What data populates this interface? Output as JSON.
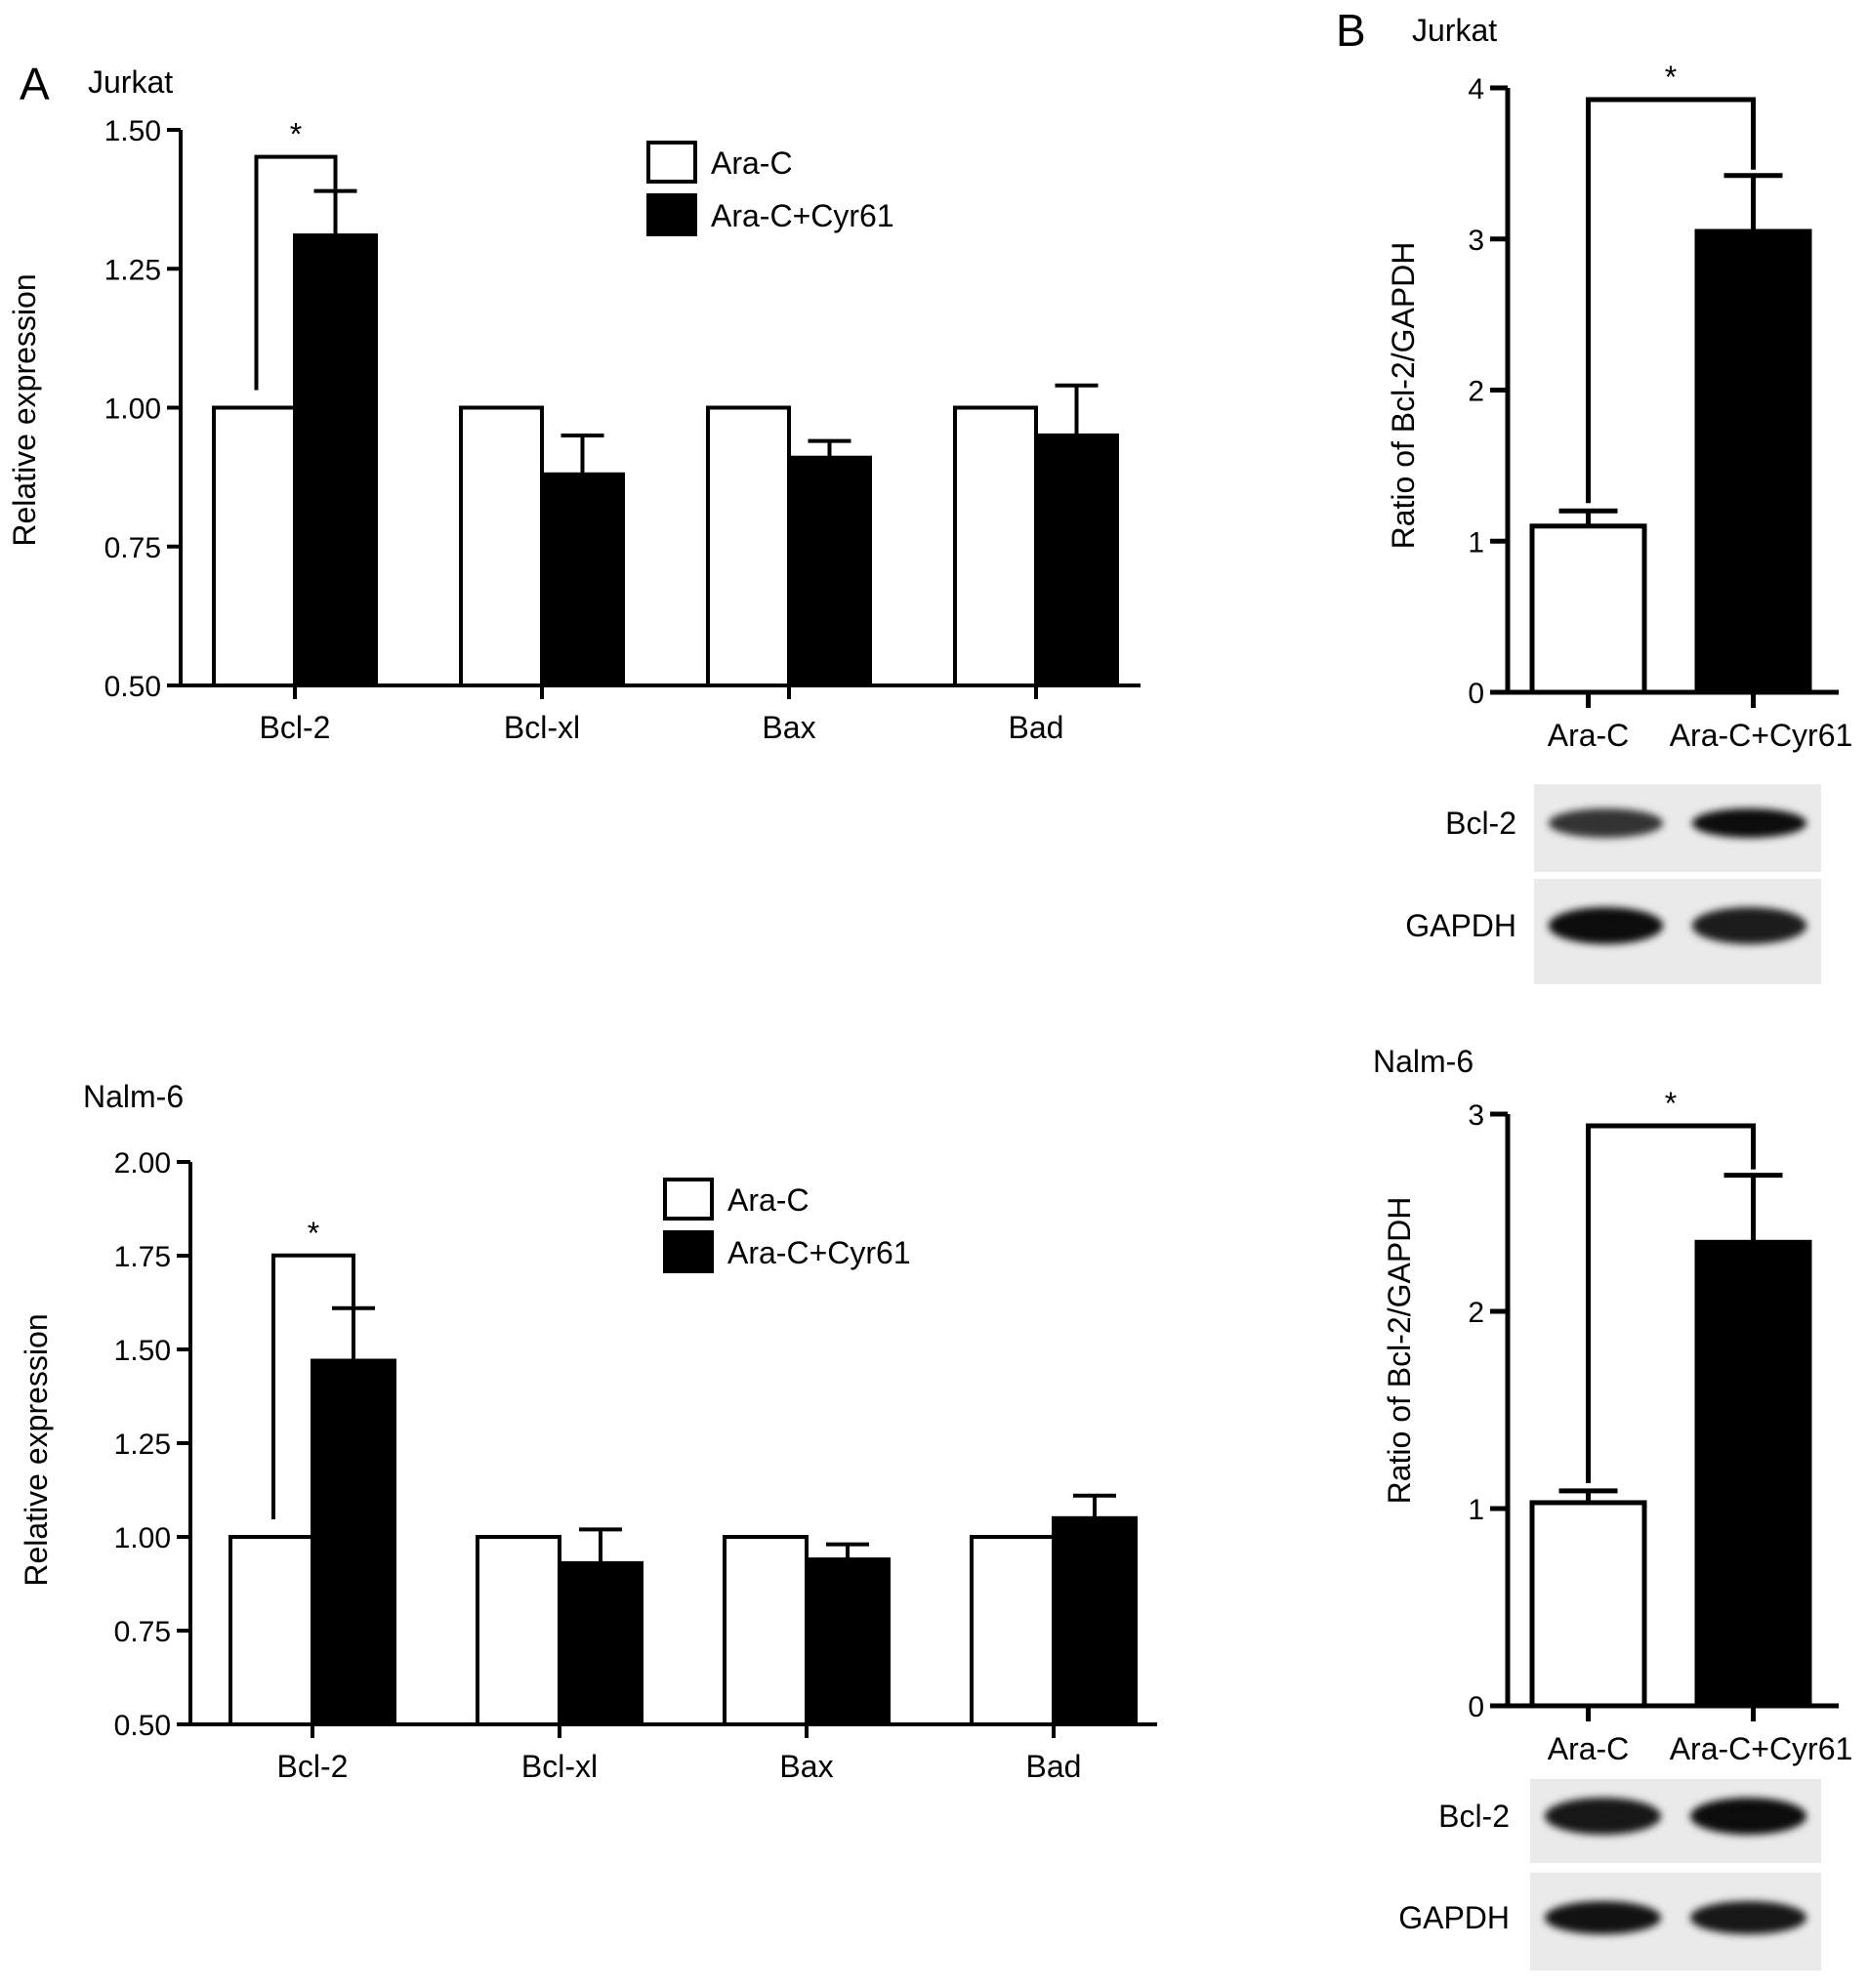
{
  "panel_letters": [
    "A",
    "B"
  ],
  "legend": {
    "items": [
      {
        "label": "Ara-C",
        "color": "#ffffff"
      },
      {
        "label": "Ara-C+Cyr61",
        "color": "#000000"
      }
    ]
  },
  "blot_labels": {
    "target": "Bcl-2",
    "control": "GAPDH"
  },
  "significance_marker": "*",
  "chart_data": [
    {
      "type": "bar",
      "panel": "A",
      "title": "Jurkat",
      "ylabel": "Relative expression",
      "xlabel": "",
      "categories": [
        "Bcl-2",
        "Bcl-xl",
        "Bax",
        "Bad"
      ],
      "ylim": [
        0.5,
        1.5
      ],
      "yticks": [
        "0.50",
        "0.75",
        "1.00",
        "1.25",
        "1.50"
      ],
      "series": [
        {
          "name": "Ara-C",
          "values": [
            1.0,
            1.0,
            1.0,
            1.0
          ],
          "errors": [
            0,
            0,
            0,
            0
          ]
        },
        {
          "name": "Ara-C+Cyr61",
          "values": [
            1.31,
            0.88,
            0.91,
            0.95
          ],
          "errors": [
            0.08,
            0.07,
            0.03,
            0.09
          ]
        }
      ],
      "significance": [
        {
          "category": "Bcl-2",
          "label": "*"
        }
      ]
    },
    {
      "type": "bar",
      "panel": "A",
      "title": "Nalm-6",
      "ylabel": "Relative expression",
      "xlabel": "",
      "categories": [
        "Bcl-2",
        "Bcl-xl",
        "Bax",
        "Bad"
      ],
      "ylim": [
        0.5,
        2.0
      ],
      "yticks": [
        "0.50",
        "0.75",
        "1.00",
        "1.25",
        "1.50",
        "1.75",
        "2.00"
      ],
      "series": [
        {
          "name": "Ara-C",
          "values": [
            1.0,
            1.0,
            1.0,
            1.0
          ],
          "errors": [
            0,
            0,
            0,
            0
          ]
        },
        {
          "name": "Ara-C+Cyr61",
          "values": [
            1.47,
            0.93,
            0.94,
            1.05
          ],
          "errors": [
            0.14,
            0.09,
            0.04,
            0.06
          ]
        }
      ],
      "significance": [
        {
          "category": "Bcl-2",
          "label": "*"
        }
      ]
    },
    {
      "type": "bar",
      "panel": "B",
      "title": "Jurkat",
      "ylabel": "Ratio of Bcl-2/GAPDH",
      "xlabel": "",
      "categories": [
        "Ara-C",
        "Ara-C+Cyr61"
      ],
      "ylim": [
        0,
        4
      ],
      "yticks": [
        "0",
        "1",
        "2",
        "3",
        "4"
      ],
      "values": [
        1.1,
        3.05
      ],
      "errors": [
        0.1,
        0.37
      ],
      "colors": [
        "#ffffff",
        "#000000"
      ],
      "significance": [
        {
          "between": [
            "Ara-C",
            "Ara-C+Cyr61"
          ],
          "label": "*"
        }
      ]
    },
    {
      "type": "bar",
      "panel": "B",
      "title": "Nalm-6",
      "ylabel": "Ratio of Bcl-2/GAPDH",
      "xlabel": "",
      "categories": [
        "Ara-C",
        "Ara-C+Cyr61"
      ],
      "ylim": [
        0,
        3
      ],
      "yticks": [
        "0",
        "1",
        "2",
        "3"
      ],
      "values": [
        1.03,
        2.35
      ],
      "errors": [
        0.06,
        0.34
      ],
      "colors": [
        "#ffffff",
        "#000000"
      ],
      "significance": [
        {
          "between": [
            "Ara-C",
            "Ara-C+Cyr61"
          ],
          "label": "*"
        }
      ]
    }
  ]
}
